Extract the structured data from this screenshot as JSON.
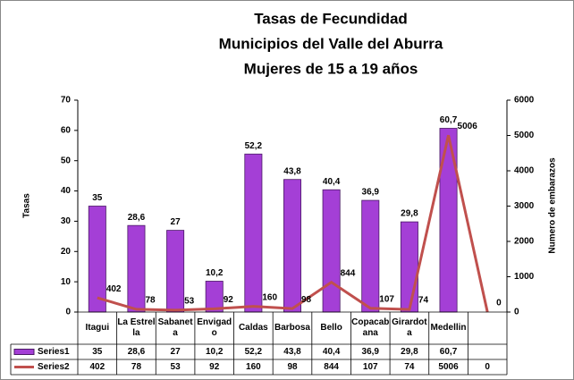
{
  "chart_data": {
    "type": "bar",
    "title": [
      "Tasas  de Fecundidad",
      "Municipios del Valle del Aburra",
      "Mujeres de 15 a 19 años"
    ],
    "ylabel": "Tasas",
    "y2label": "Numero de embarazos",
    "categories": [
      "Itagui",
      "La Estrella",
      "Sabaneta",
      "Envigado",
      "Caldas",
      "Barbosa",
      "Bello",
      "Copacabana",
      "Girardota",
      "Medellin",
      null
    ],
    "series": [
      {
        "name": "Series1",
        "type": "bar",
        "color": "#a43fd6",
        "values": [
          35,
          28.6,
          27,
          10.2,
          52.2,
          43.8,
          40.4,
          36.9,
          29.8,
          60.7,
          null
        ],
        "value_labels": [
          "35",
          "28,6",
          "27",
          "10,2",
          "52,2",
          "43,8",
          "40,4",
          "36,9",
          "29,8",
          "60,7",
          null
        ]
      },
      {
        "name": "Series2",
        "type": "line",
        "axis": "y2",
        "color": "#c0504d",
        "values": [
          402,
          78,
          53,
          92,
          160,
          98,
          844,
          107,
          74,
          5006,
          0
        ]
      }
    ],
    "ylim": [
      0,
      70
    ],
    "yticks": [
      0,
      10,
      20,
      30,
      40,
      50,
      60,
      70
    ],
    "y2lim": [
      0,
      6000
    ],
    "y2ticks": [
      0,
      1000,
      2000,
      3000,
      4000,
      5000,
      6000
    ],
    "data_table": true
  }
}
